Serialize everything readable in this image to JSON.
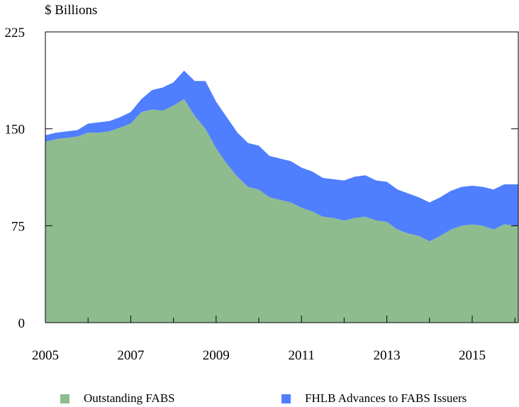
{
  "chart_data": {
    "type": "area",
    "stacked": true,
    "ylabel": "$ Billions",
    "xlabel": "",
    "title": "",
    "ylim": [
      0,
      225
    ],
    "yticks": [
      0,
      75,
      150,
      225
    ],
    "xlim": [
      2005,
      2016.08
    ],
    "xticks": [
      2005,
      2007,
      2009,
      2011,
      2013,
      2015
    ],
    "grid": false,
    "legend_position": "bottom",
    "x": [
      2005,
      2005.25,
      2005.5,
      2005.75,
      2006,
      2006.25,
      2006.5,
      2006.75,
      2007,
      2007.25,
      2007.5,
      2007.75,
      2008,
      2008.25,
      2008.5,
      2008.75,
      2009,
      2009.25,
      2009.5,
      2009.75,
      2010,
      2010.25,
      2010.5,
      2010.75,
      2011,
      2011.25,
      2011.5,
      2011.75,
      2012,
      2012.25,
      2012.5,
      2012.75,
      2013,
      2013.25,
      2013.5,
      2013.75,
      2014,
      2014.25,
      2014.5,
      2014.75,
      2015,
      2015.25,
      2015.5,
      2015.75,
      2016.08
    ],
    "series": [
      {
        "name": "Outstanding FABS",
        "color": "#8fbc8f",
        "values": [
          140,
          142,
          143,
          144,
          147,
          147,
          148,
          151,
          154,
          163,
          165,
          164,
          168,
          173,
          160,
          150,
          135,
          123,
          113,
          105,
          103,
          97,
          95,
          93,
          89,
          86,
          82,
          81,
          79,
          81,
          82,
          79,
          78,
          72,
          69,
          67,
          63,
          67,
          72,
          75,
          76,
          75,
          72,
          76,
          75
        ]
      },
      {
        "name": "FHLB Advances to FABS Issuers",
        "color": "#4f7fff",
        "values": [
          5,
          5,
          5,
          5,
          7,
          8,
          8,
          8,
          9,
          10,
          15,
          18,
          18,
          22,
          27,
          37,
          36,
          36,
          34,
          34,
          34,
          32,
          32,
          32,
          31,
          31,
          30,
          30,
          31,
          32,
          32,
          31,
          31,
          31,
          31,
          30,
          30,
          30,
          30,
          30,
          30,
          30,
          31,
          31,
          32
        ]
      }
    ]
  }
}
